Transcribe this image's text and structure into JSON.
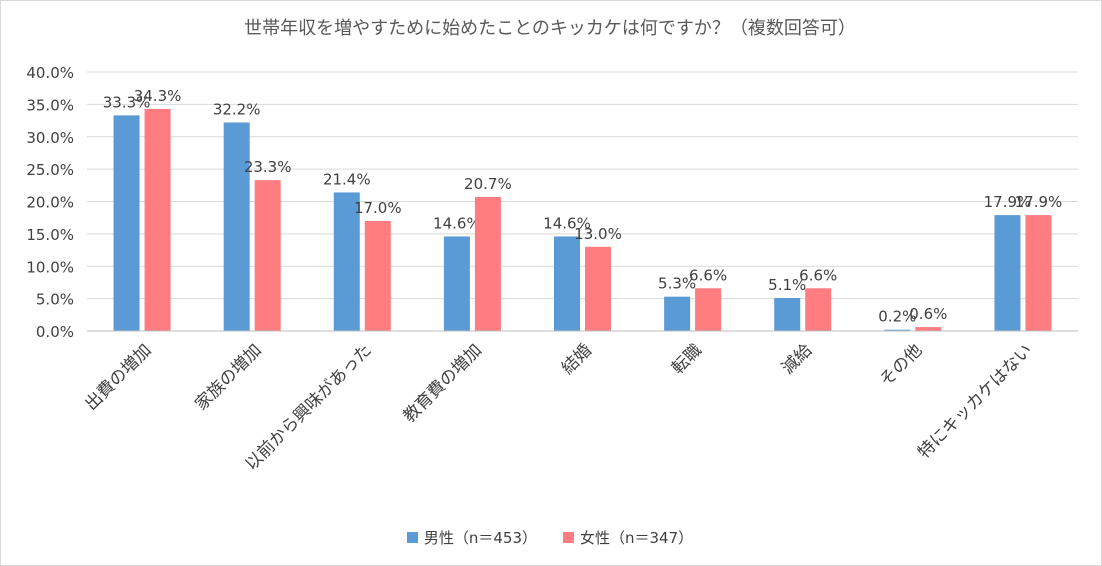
{
  "chart_data": {
    "type": "bar",
    "title": "世帯年収を増やすために始めたことのキッカケは何ですか？（複数回答可）",
    "categories": [
      "出費の増加",
      "家族の増加",
      "以前から興味があった",
      "教育費の増加",
      "結婚",
      "転職",
      "減給",
      "その他",
      "特にキッカケはない"
    ],
    "series": [
      {
        "name": "男性（n＝453）",
        "color": "#5b9bd5",
        "values": [
          33.3,
          32.2,
          21.4,
          14.6,
          14.6,
          5.3,
          5.1,
          0.2,
          17.9
        ],
        "labels": [
          "33.3%",
          "32.2%",
          "21.4%",
          "14.6%",
          "14.6%",
          "5.3%",
          "5.1%",
          "0.2%",
          "17.9%"
        ]
      },
      {
        "name": "女性（n＝347）",
        "color": "#ff7c80",
        "values": [
          34.3,
          23.3,
          17.0,
          20.7,
          13.0,
          6.6,
          6.6,
          0.6,
          17.9
        ],
        "labels": [
          "34.3%",
          "23.3%",
          "17.0%",
          "20.7%",
          "13.0%",
          "6.6%",
          "6.6%",
          "0.6%",
          "17.9%"
        ]
      }
    ],
    "ylim": [
      0,
      40
    ],
    "yticks": [
      0,
      5,
      10,
      15,
      20,
      25,
      30,
      35,
      40
    ],
    "ytick_labels": [
      "0.0%",
      "5.0%",
      "10.0%",
      "15.0%",
      "20.0%",
      "25.0%",
      "30.0%",
      "35.0%",
      "40.0%"
    ],
    "grid": true,
    "legend_position": "bottom"
  }
}
